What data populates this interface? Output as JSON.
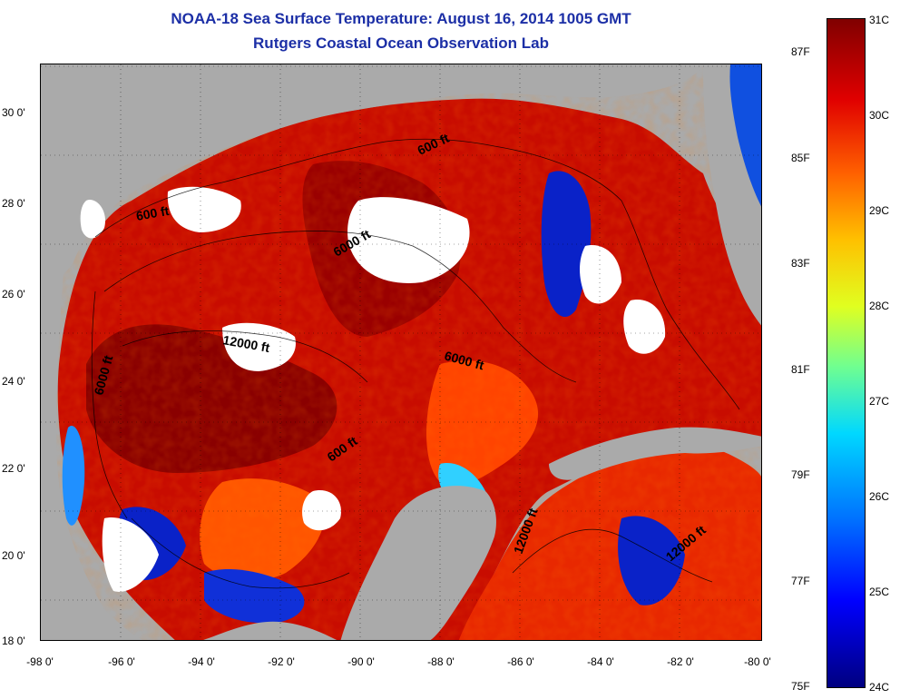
{
  "title": {
    "line1": "NOAA-18 Sea Surface Temperature:  August 16, 2014 1005 GMT",
    "line2": "Rutgers Coastal Ocean Observation Lab"
  },
  "map": {
    "lat_labels": [
      "30 0'",
      "28 0'",
      "26 0'",
      "24 0'",
      "22 0'",
      "20 0'",
      "18 0'"
    ],
    "lon_labels": [
      "-98 0'",
      "-96 0'",
      "-94 0'",
      "-92 0'",
      "-90 0'",
      "-88 0'",
      "-86 0'",
      "-84 0'",
      "-82 0'",
      "-80 0'"
    ],
    "contour_labels": [
      {
        "text": "600 ft",
        "depth_ft": 600
      },
      {
        "text": "600 ft",
        "depth_ft": 600
      },
      {
        "text": "600 ft",
        "depth_ft": 600
      },
      {
        "text": "6000 ft",
        "depth_ft": 6000
      },
      {
        "text": "6000 ft",
        "depth_ft": 6000
      },
      {
        "text": "6000 ft",
        "depth_ft": 6000
      },
      {
        "text": "12000 ft",
        "depth_ft": 12000
      },
      {
        "text": "12000 ft",
        "depth_ft": 12000
      },
      {
        "text": "12000 ft",
        "depth_ft": 12000
      }
    ],
    "colors": {
      "land": "#aaaaaa",
      "cloud": "#ffffff",
      "warm": "#b00000",
      "hot": "#800000",
      "orange": "#ff5000",
      "cold": "#0018c0"
    }
  },
  "colorbar": {
    "celsius": [
      "31C",
      "30C",
      "29C",
      "28C",
      "27C",
      "26C",
      "25C",
      "24C"
    ],
    "fahrenheit": [
      "87F",
      "85F",
      "83F",
      "81F",
      "79F",
      "77F",
      "75F"
    ]
  }
}
